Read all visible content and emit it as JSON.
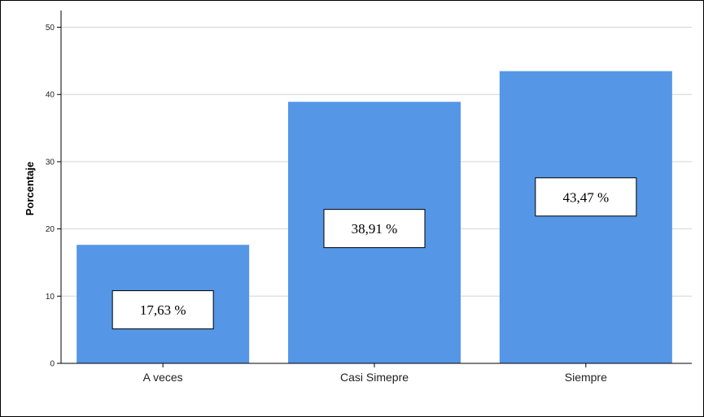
{
  "chart_data": {
    "type": "bar",
    "title": "",
    "xlabel": "",
    "ylabel": "Porcentaje",
    "ylim": [
      0,
      52
    ],
    "yticks": [
      0,
      10,
      20,
      30,
      40,
      50
    ],
    "ytick_labels": [
      "0",
      "10",
      "20",
      "30",
      "40",
      "50"
    ],
    "categories": [
      "A veces",
      "Casi Simepre",
      "Siempre"
    ],
    "values": [
      17.63,
      38.91,
      43.47
    ],
    "data_labels": [
      "17,63 %",
      "38,91 %",
      "43,47 %"
    ],
    "grid": "horizontal",
    "legend": "none",
    "colors": {
      "bar": "#5596e6",
      "grid": "#d4d4d4",
      "axis": "#000000",
      "label_box_fill": "#ffffff",
      "label_box_border": "#000000"
    }
  }
}
